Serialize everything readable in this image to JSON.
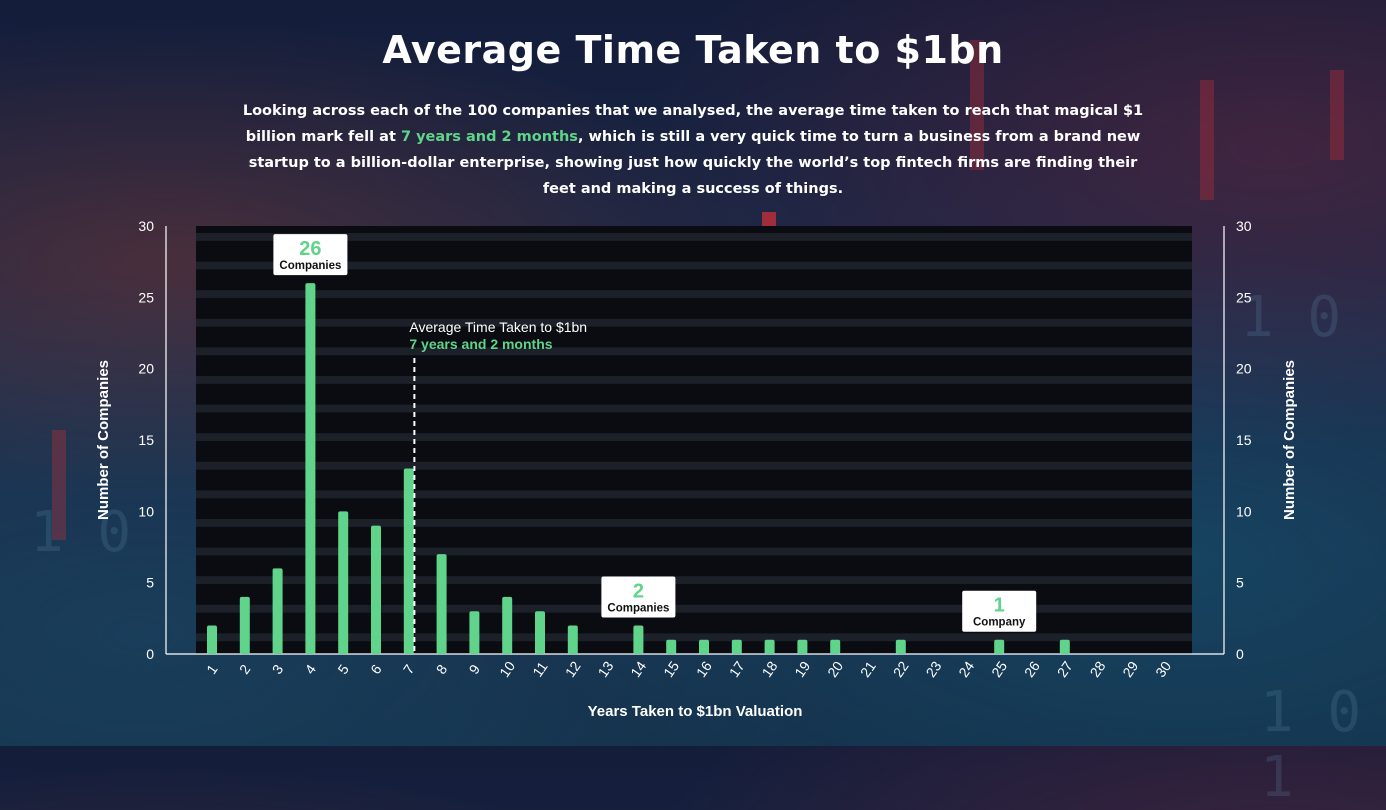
{
  "page": {
    "title": "Average Time Taken to $1bn",
    "intro_before": "Looking across each of the 100 companies that we analysed, the average time taken to reach that magical $1 billion mark fell at ",
    "intro_highlight": "7 years and 2 months",
    "intro_after": ", which is still a very quick time to turn a business from a brand new startup to a billion-dollar enterprise, showing just how quickly the world’s top fintech firms are finding their feet and making a success of things."
  },
  "colors": {
    "bar": "#5fd48a",
    "plot_background": "#0a0c12",
    "stripe": "#1c2029",
    "highlight": "#5fd48a"
  },
  "chart_data": {
    "type": "bar",
    "title": "",
    "xlabel": "Years Taken to $1bn Valuation",
    "ylabel": "Number of Companies",
    "ylabel_right": "Number of Companies",
    "ylim": [
      0,
      30
    ],
    "yticks": [
      0,
      5,
      10,
      15,
      20,
      25,
      30
    ],
    "categories": [
      "1",
      "2",
      "3",
      "4",
      "5",
      "6",
      "7",
      "8",
      "9",
      "10",
      "11",
      "12",
      "13",
      "14",
      "15",
      "16",
      "17",
      "18",
      "19",
      "20",
      "21",
      "22",
      "23",
      "24",
      "25",
      "26",
      "27",
      "28",
      "29",
      "30"
    ],
    "values": [
      2,
      4,
      6,
      26,
      10,
      9,
      13,
      7,
      3,
      4,
      3,
      2,
      0,
      2,
      1,
      1,
      1,
      1,
      1,
      1,
      0,
      1,
      0,
      0,
      1,
      0,
      1,
      0,
      0,
      0
    ],
    "grid": "horizontal stripes",
    "average_line": {
      "x": 7.17,
      "title": "Average Time Taken to $1bn",
      "value_label": "7 years and 2 months"
    },
    "callouts": [
      {
        "category": "4",
        "number": "26",
        "label": "Companies"
      },
      {
        "category": "14",
        "number": "2",
        "label": "Companies"
      },
      {
        "category": "25",
        "number": "1",
        "label": "Company"
      }
    ]
  }
}
